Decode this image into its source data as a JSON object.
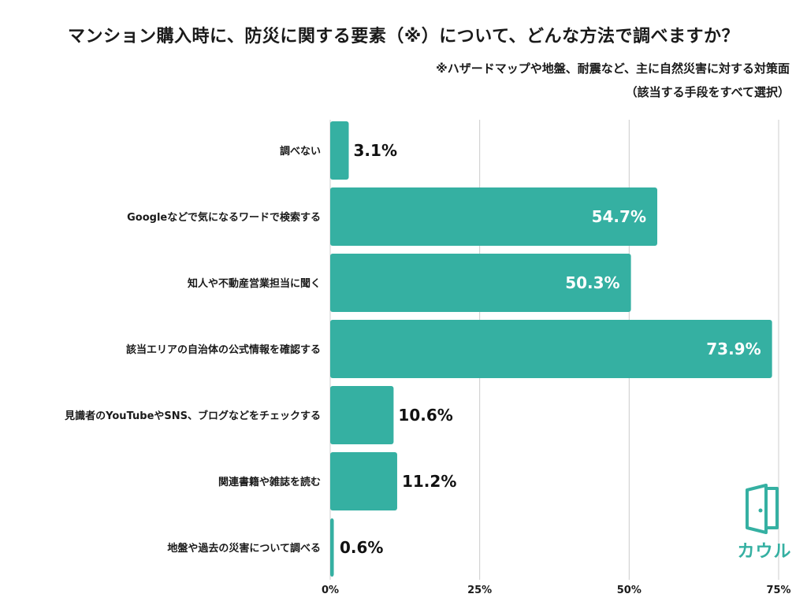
{
  "title": "マンション購入時に、防災に関する要素（※）について、どんな方法で調べますか？",
  "note_line1": "※ハザードマップや地盤、耐震など、主に自然災害に対する対策面",
  "note_line2": "（該当する手段をすべて選択）",
  "logo_text": "カウル",
  "colors": {
    "bar": "#35b0a2",
    "grid": "#cccccc",
    "label_inside": "#ffffff",
    "label_outside": "#111111"
  },
  "chart_data": {
    "type": "bar",
    "orientation": "horizontal",
    "categories": [
      "調べない",
      "Googleなどで気になるワードで検索する",
      "知人や不動産営業担当に聞く",
      "該当エリアの自治体の公式情報を確認する",
      "見識者のYouTubeやSNS、ブログなどをチェックする",
      "関連書籍や雑誌を読む",
      "地盤や過去の災害について調べる"
    ],
    "values": [
      3.1,
      54.7,
      50.3,
      73.9,
      10.6,
      11.2,
      0.6
    ],
    "value_labels": [
      "3.1%",
      "54.7%",
      "50.3%",
      "73.9%",
      "10.6%",
      "11.2%",
      "0.6%"
    ],
    "xlim": [
      0,
      75
    ],
    "xticks": [
      0,
      25,
      50,
      75
    ],
    "xtick_labels": [
      "0%",
      "25%",
      "50%",
      "75%"
    ],
    "grid": true,
    "legend": "none"
  }
}
